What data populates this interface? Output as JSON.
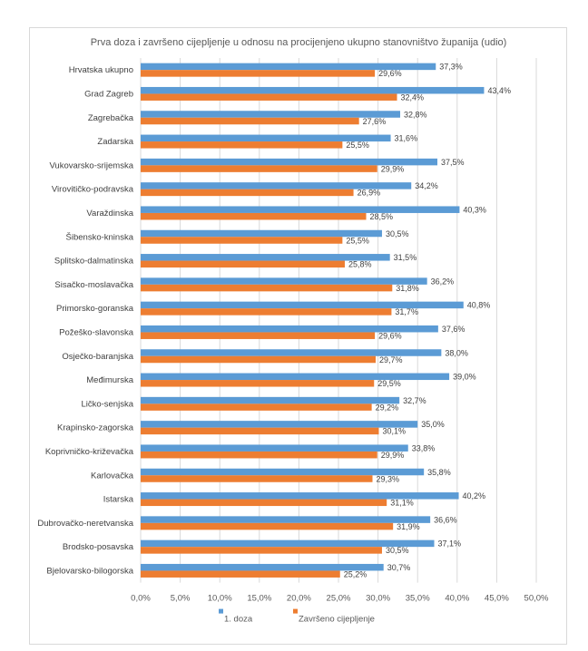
{
  "chart_data": {
    "type": "bar",
    "orientation": "horizontal",
    "title": "Prva doza i završeno cijepljenje u odnosu na procijenjeno ukupno stanovništvo županija (udio)",
    "categories": [
      "Hrvatska ukupno",
      "Grad Zagreb",
      "Zagrebačka",
      "Zadarska",
      "Vukovarsko-srijemska",
      "Virovitičko-podravska",
      "Varaždinska",
      "Šibensko-kninska",
      "Splitsko-dalmatinska",
      "Sisačko-moslavačka",
      "Primorsko-goranska",
      "Požeško-slavonska",
      "Osječko-baranjska",
      "Međimurska",
      "Ličko-senjska",
      "Krapinsko-zagorska",
      "Koprivničko-križevačka",
      "Karlovačka",
      "Istarska",
      "Dubrovačko-neretvanska",
      "Brodsko-posavska",
      "Bjelovarsko-bilogorska"
    ],
    "series": [
      {
        "name": "1. doza",
        "color": "#5b9bd5",
        "values": [
          37.3,
          43.4,
          32.8,
          31.6,
          37.5,
          34.2,
          40.3,
          30.5,
          31.5,
          36.2,
          40.8,
          37.6,
          38.0,
          39.0,
          32.7,
          35.0,
          33.8,
          35.8,
          40.2,
          36.6,
          37.1,
          30.7
        ],
        "labels": [
          "37,3%",
          "43,4%",
          "32,8%",
          "31,6%",
          "37,5%",
          "34,2%",
          "40,3%",
          "30,5%",
          "31,5%",
          "36,2%",
          "40,8%",
          "37,6%",
          "38,0%",
          "39,0%",
          "32,7%",
          "35,0%",
          "33,8%",
          "35,8%",
          "40,2%",
          "36,6%",
          "37,1%",
          "30,7%"
        ]
      },
      {
        "name": "Završeno cijepljenje",
        "color": "#ed7d31",
        "values": [
          29.6,
          32.4,
          27.6,
          25.5,
          29.9,
          26.9,
          28.5,
          25.5,
          25.8,
          31.8,
          31.7,
          29.6,
          29.7,
          29.5,
          29.2,
          30.1,
          29.9,
          29.3,
          31.1,
          31.9,
          30.5,
          25.2
        ],
        "labels": [
          "29,6%",
          "32,4%",
          "27,6%",
          "25,5%",
          "29,9%",
          "26,9%",
          "28,5%",
          "25,5%",
          "25,8%",
          "31,8%",
          "31,7%",
          "29,6%",
          "29,7%",
          "29,5%",
          "29,2%",
          "30,1%",
          "29,9%",
          "29,3%",
          "31,1%",
          "31,9%",
          "30,5%",
          "25,2%"
        ]
      }
    ],
    "xlim": [
      0,
      50
    ],
    "xticks": [
      "0,0%",
      "5,0%",
      "10,0%",
      "15,0%",
      "20,0%",
      "25,0%",
      "30,0%",
      "35,0%",
      "40,0%",
      "45,0%",
      "50,0%"
    ],
    "grid": true,
    "legend_position": "bottom"
  }
}
